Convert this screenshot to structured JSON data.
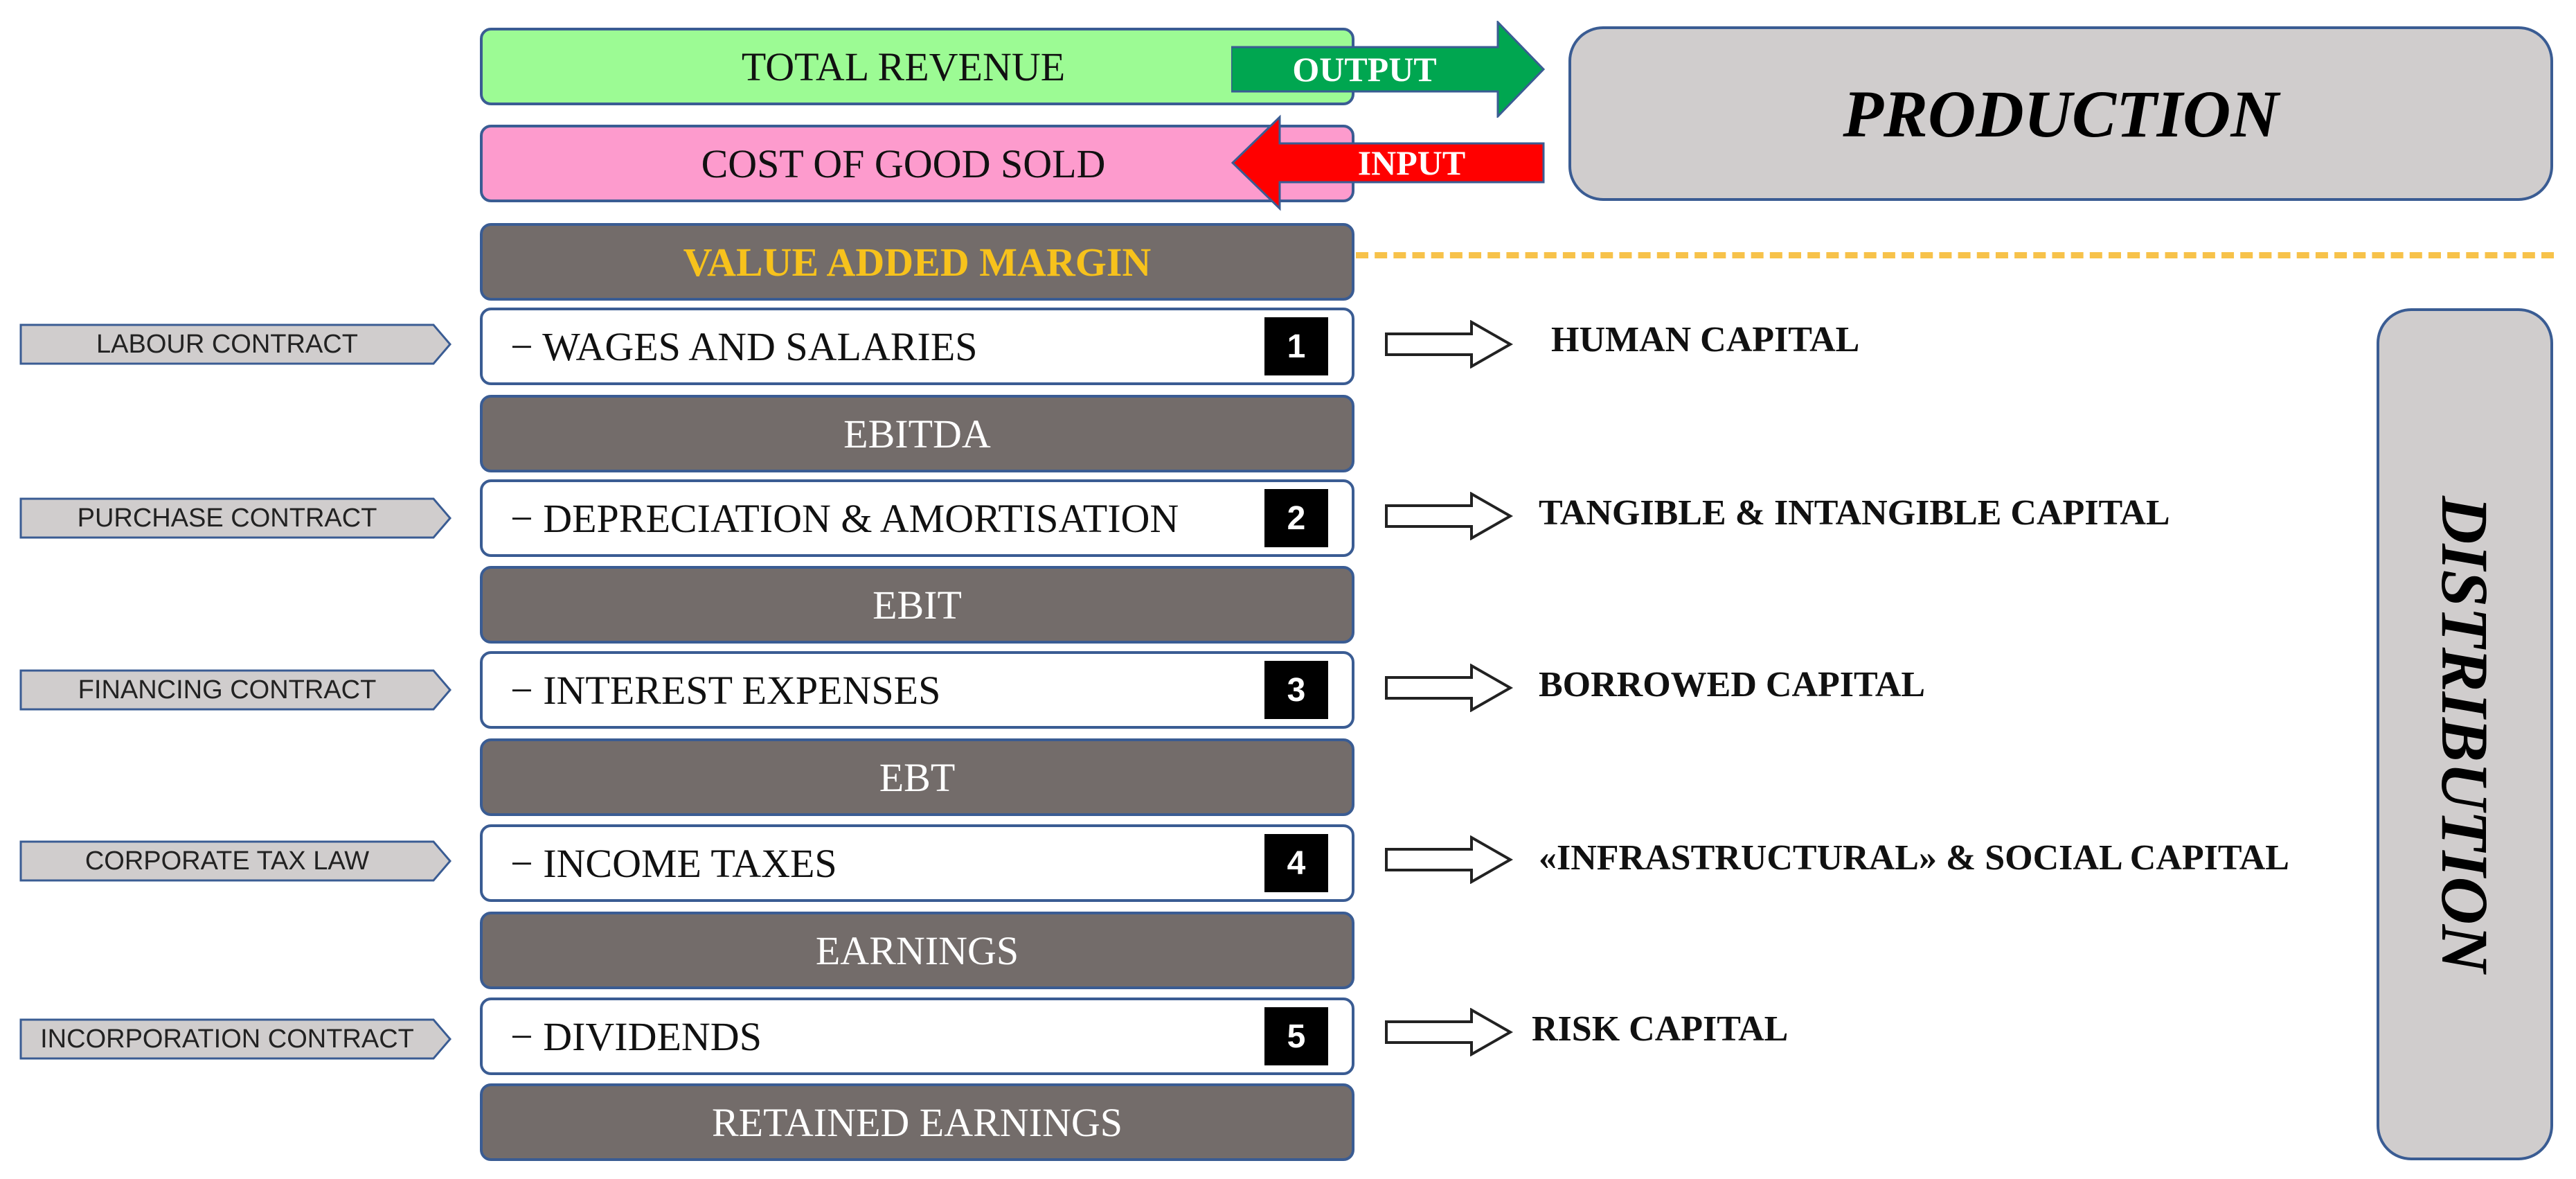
{
  "colors": {
    "green_box": "#9cfb94",
    "pink_box": "#fd9bcd",
    "gray_box": "#736c6a",
    "gold_text": "#f7c21c",
    "output_arrow": "#00a650",
    "input_arrow": "#ff0000",
    "panel": "#d0cdcd",
    "border": "#3a5c93"
  },
  "production": {
    "title": "PRODUCTION"
  },
  "distribution": {
    "title": "DISTRIBUTION"
  },
  "flows": {
    "output": "OUTPUT",
    "input": "INPUT"
  },
  "rows": {
    "total_revenue": "TOTAL REVENUE",
    "cogs": "COST OF GOOD SOLD",
    "value_added": "VALUE ADDED MARGIN",
    "ebitda": "EBITDA",
    "ebit": "EBIT",
    "ebt": "EBT",
    "earnings": "EARNINGS",
    "retained": "RETAINED EARNINGS"
  },
  "deductions": [
    {
      "label": "− WAGES AND SALARIES",
      "num": "1",
      "contract": "LABOUR CONTRACT",
      "capital": "HUMAN CAPITAL"
    },
    {
      "label": "− DEPRECIATION & AMORTISATION",
      "num": "2",
      "contract": "PURCHASE CONTRACT",
      "capital": "TANGIBLE & INTANGIBLE CAPITAL"
    },
    {
      "label": "− INTEREST EXPENSES",
      "num": "3",
      "contract": "FINANCING CONTRACT",
      "capital": "BORROWED CAPITAL"
    },
    {
      "label": "− INCOME TAXES",
      "num": "4",
      "contract": "CORPORATE TAX LAW",
      "capital": "«INFRASTRUCTURAL» & SOCIAL CAPITAL"
    },
    {
      "label": "− DIVIDENDS",
      "num": "5",
      "contract": "INCORPORATION CONTRACT",
      "capital": "RISK CAPITAL"
    }
  ]
}
